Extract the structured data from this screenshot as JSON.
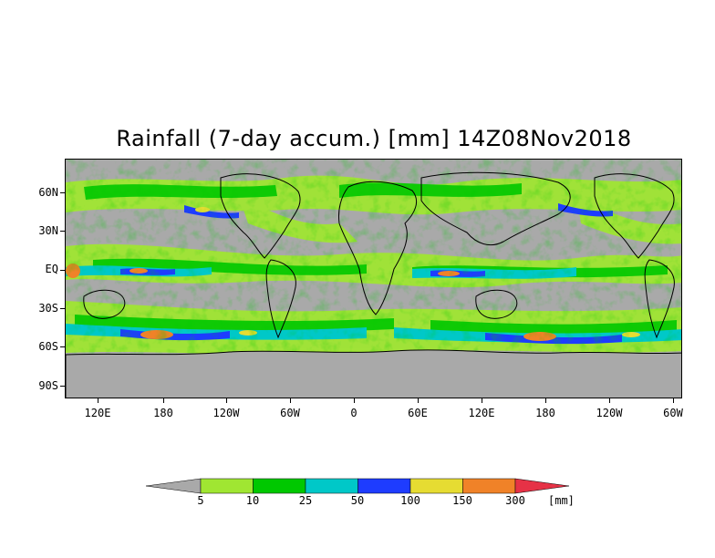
{
  "title": "Rainfall (7-day accum.) [mm] 14Z08Nov2018",
  "y_axis_labels": [
    "60N",
    "30N",
    "EQ",
    "30S",
    "60S",
    "90S"
  ],
  "x_axis_labels": [
    "120E",
    "180",
    "120W",
    "60W",
    "0",
    "60E",
    "120E",
    "180",
    "120W",
    "60W"
  ],
  "colorbar": {
    "levels": [
      "5",
      "10",
      "25",
      "50",
      "100",
      "150",
      "300"
    ],
    "unit": "[mm]",
    "colors": {
      "below_min": "#a9a9a9",
      "bins": [
        "#a0e632",
        "#00c800",
        "#00c8c8",
        "#1e3cff",
        "#e6dc32",
        "#f08228"
      ],
      "above_max": "#e63246"
    }
  },
  "map_colors": {
    "background": "#a9a9a9",
    "antarctica": "#a9a9a9",
    "coastline": "#000000"
  }
}
